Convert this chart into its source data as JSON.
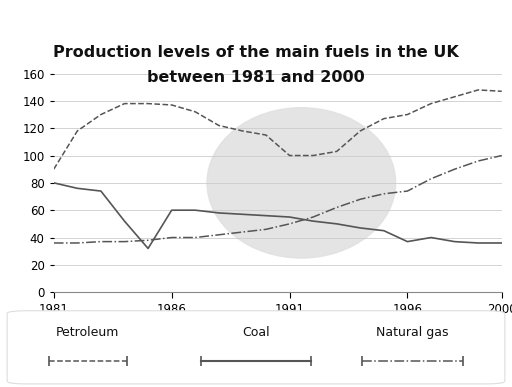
{
  "title_line1": "Production levels of the main fuels in the UK",
  "title_line2": "between 1981 and 2000",
  "years": [
    1981,
    1982,
    1983,
    1984,
    1985,
    1986,
    1987,
    1988,
    1989,
    1990,
    1991,
    1992,
    1993,
    1994,
    1995,
    1996,
    1997,
    1998,
    1999,
    2000
  ],
  "coal": [
    80,
    76,
    74,
    52,
    32,
    60,
    60,
    58,
    57,
    56,
    55,
    52,
    50,
    47,
    45,
    37,
    40,
    37,
    36,
    36
  ],
  "petroleum": [
    90,
    118,
    130,
    138,
    138,
    137,
    132,
    122,
    118,
    115,
    100,
    100,
    103,
    118,
    127,
    130,
    138,
    143,
    148,
    147
  ],
  "natural_gas": [
    36,
    36,
    37,
    37,
    38,
    40,
    40,
    42,
    44,
    46,
    50,
    55,
    62,
    68,
    72,
    74,
    83,
    90,
    96,
    100
  ],
  "ylim": [
    0,
    160
  ],
  "yticks": [
    0,
    20,
    40,
    60,
    80,
    100,
    120,
    140,
    160
  ],
  "xticks": [
    1981,
    1986,
    1991,
    1996,
    2000
  ],
  "line_color": "#555555",
  "grid_color": "#cccccc",
  "bg_color": "#ffffff",
  "watermark_color": "#e0e0e0",
  "title_fontsize": 11.5,
  "tick_fontsize": 8.5,
  "legend_fontsize": 9
}
